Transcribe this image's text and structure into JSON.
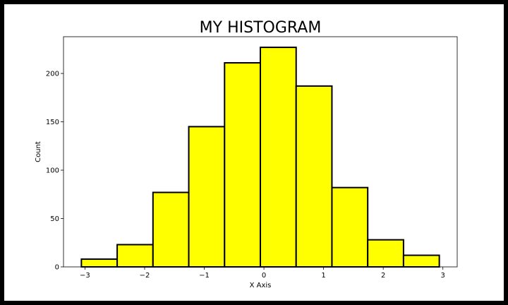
{
  "chart_data": {
    "type": "bar",
    "title": "MY HISTOGRAM",
    "xlabel": "X Axis",
    "ylabel": "Count",
    "bin_edges": [
      -3.06,
      -2.46,
      -1.86,
      -1.26,
      -0.66,
      -0.06,
      0.54,
      1.14,
      1.74,
      2.34,
      2.94
    ],
    "values": [
      8,
      23,
      77,
      145,
      211,
      227,
      187,
      82,
      28,
      12
    ],
    "xlim": [
      -3.36,
      3.24
    ],
    "ylim": [
      0,
      238
    ],
    "x_ticks": [
      {
        "value": -3,
        "label": "−3"
      },
      {
        "value": -2,
        "label": "−2"
      },
      {
        "value": -1,
        "label": "−1"
      },
      {
        "value": 0,
        "label": "0"
      },
      {
        "value": 1,
        "label": "1"
      },
      {
        "value": 2,
        "label": "2"
      },
      {
        "value": 3,
        "label": "3"
      }
    ],
    "y_ticks": [
      {
        "value": 0,
        "label": "0"
      },
      {
        "value": 50,
        "label": "50"
      },
      {
        "value": 100,
        "label": "100"
      },
      {
        "value": 150,
        "label": "150"
      },
      {
        "value": 200,
        "label": "200"
      }
    ],
    "grid": false,
    "bar_color": "#ffff00",
    "edge_color": "#000000"
  }
}
